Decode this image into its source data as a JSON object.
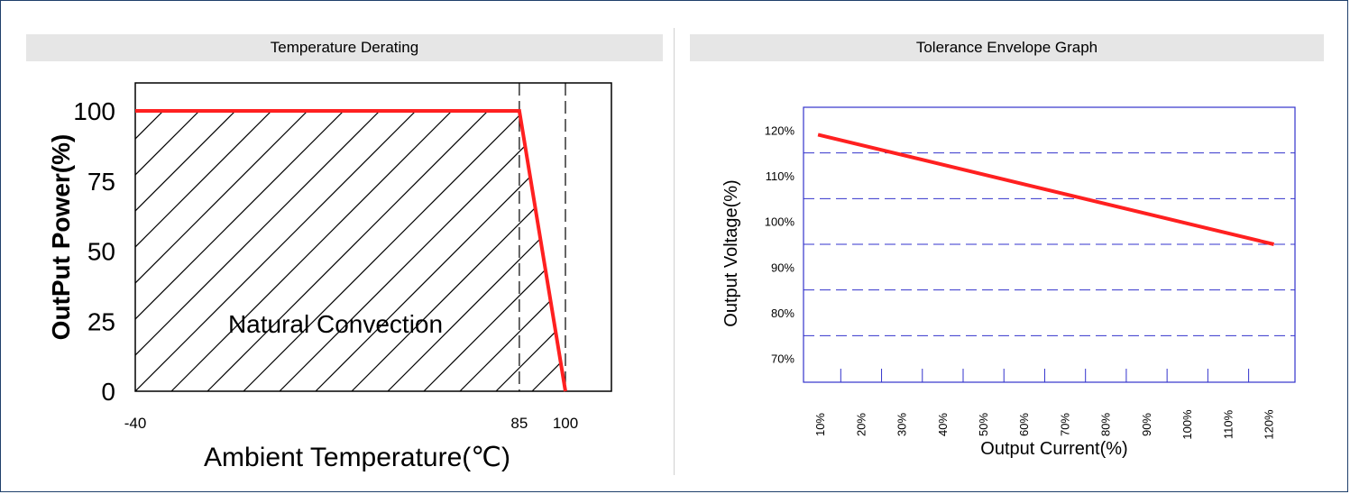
{
  "chart_data": [
    {
      "type": "line",
      "title": "Temperature Derating",
      "xlabel": "Ambient Temperature(℃)",
      "ylabel": "OutPut Power(%)",
      "x_ticks": [
        "-40",
        "85",
        "100"
      ],
      "y_ticks": [
        "100",
        "75",
        "50",
        "25",
        "0"
      ],
      "xlim": [
        -40,
        100
      ],
      "ylim": [
        0,
        110
      ],
      "series": [
        {
          "values": [
            [
              -40,
              100
            ],
            [
              85,
              100
            ],
            [
              100,
              0
            ]
          ]
        }
      ],
      "vlines": [
        85,
        100
      ],
      "annotation": "Natural Convection",
      "hatched_area": true,
      "colors": {
        "line": "#ff2020",
        "hatch": "#000000",
        "dashed": "#000000"
      }
    },
    {
      "type": "line",
      "title": "Tolerance Envelope Graph",
      "xlabel": "Output  Current(%)",
      "ylabel": "Output Voltage(%)",
      "x_ticks": [
        "10%",
        "20%",
        "30%",
        "40%",
        "50%",
        "60%",
        "70%",
        "80%",
        "90%",
        "100%",
        "110%",
        "120%"
      ],
      "y_ticks": [
        "120%",
        "110%",
        "100%",
        "90%",
        "80%",
        "70%"
      ],
      "xlim": [
        10,
        120
      ],
      "ylim": [
        70,
        120
      ],
      "hlines": [
        115,
        105,
        95,
        85,
        75
      ],
      "series": [
        {
          "values": [
            [
              10,
              119
            ],
            [
              120,
              95
            ]
          ]
        }
      ],
      "colors": {
        "line": "#ff2020",
        "grid": "#3333cc",
        "frame": "#3333cc"
      }
    }
  ]
}
